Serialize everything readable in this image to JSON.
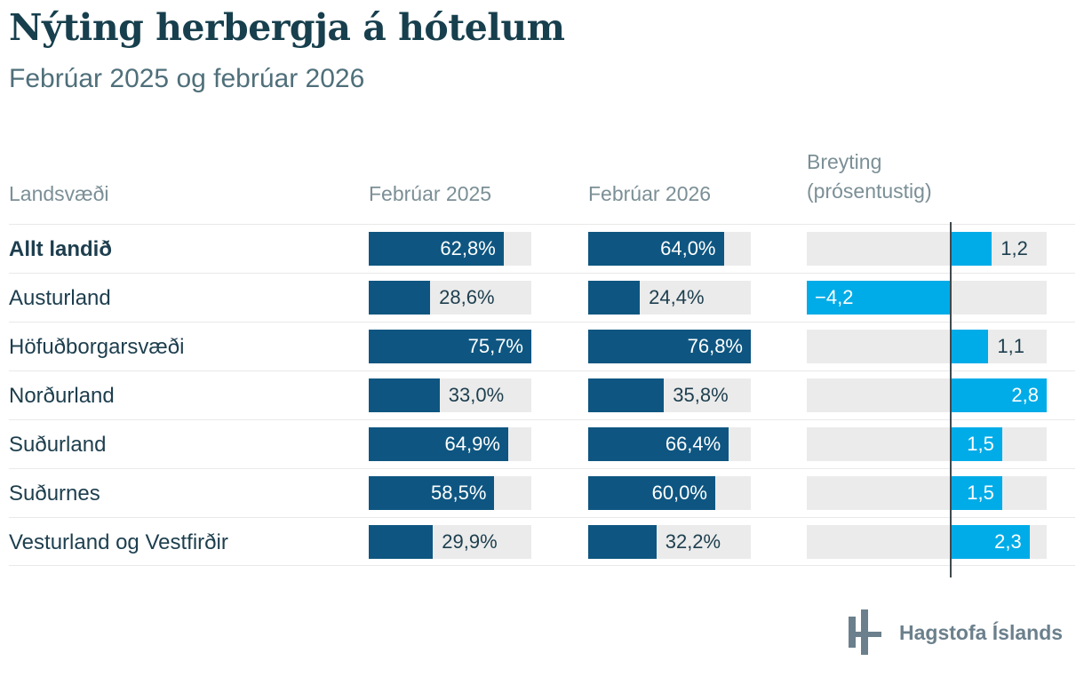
{
  "title": "Nýting herbergja á hótelum",
  "subtitle": "Febrúar 2025 og febrúar 2026",
  "columns": {
    "region": "Landsvæði",
    "feb2025": "Febrúar 2025",
    "feb2026": "Febrúar 2026",
    "change_line1": "Breyting",
    "change_line2": "(prósentustig)"
  },
  "chart_data": {
    "type": "bar",
    "title": "Nýting herbergja á hótelum",
    "subtitle": "Febrúar 2025 og febrúar 2026",
    "categories": [
      "Allt landið",
      "Austurland",
      "Höfuðborgarsvæði",
      "Norðurland",
      "Suðurland",
      "Suðurnes",
      "Vesturland og Vestfirðir"
    ],
    "emphasized_category": "Allt landið",
    "series": [
      {
        "name": "Febrúar 2025",
        "unit": "%",
        "values": [
          62.8,
          28.6,
          75.7,
          33.0,
          64.9,
          58.5,
          29.9
        ],
        "labels": [
          "62,8%",
          "28,6%",
          "75,7%",
          "33,0%",
          "64,9%",
          "58,5%",
          "29,9%"
        ]
      },
      {
        "name": "Febrúar 2026",
        "unit": "%",
        "values": [
          64.0,
          24.4,
          76.8,
          35.8,
          66.4,
          60.0,
          32.2
        ],
        "labels": [
          "64,0%",
          "24,4%",
          "76,8%",
          "35,8%",
          "66,4%",
          "60,0%",
          "32,2%"
        ]
      },
      {
        "name": "Breyting (prósentustig)",
        "unit": "prósentustig",
        "values": [
          1.2,
          -4.2,
          1.1,
          2.8,
          1.5,
          1.5,
          2.3
        ],
        "labels": [
          "1,2",
          "−4,2",
          "1,1",
          "2,8",
          "1,5",
          "1,5",
          "2,3"
        ]
      }
    ],
    "layout": {
      "bars_scaled_to_column_max": true,
      "change_axis_min": -4.2,
      "change_axis_max": 2.8,
      "zero_line": true
    }
  },
  "footer": {
    "logo_text": "Hagstofa Íslands"
  },
  "colors": {
    "navy": "#0e5681",
    "cyan": "#00ace8",
    "track": "#ebebeb",
    "dark_text": "#1d3e4e",
    "title_text": "#173f4d",
    "subtitle_text": "#4f6f7a",
    "header_text": "#7b8f96",
    "zero_line": "#41494e",
    "logo": "#6b808c"
  }
}
